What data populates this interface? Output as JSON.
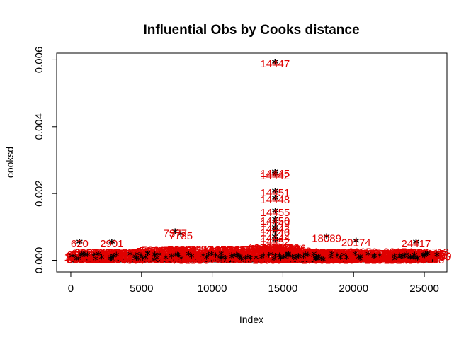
{
  "chart_data": {
    "type": "scatter",
    "title": "Influential Obs by Cooks distance",
    "xlabel": "Index",
    "ylabel": "cooksd",
    "xlim": [
      -1000,
      26600
    ],
    "ylim": [
      -0.00035,
      0.0062
    ],
    "x_ticks": [
      0,
      5000,
      10000,
      15000,
      20000,
      25000
    ],
    "x_tick_labels": [
      "0",
      "5000",
      "10000",
      "15000",
      "20000",
      "25000"
    ],
    "y_ticks": [
      0,
      0.002,
      0.004,
      0.006
    ],
    "y_tick_labels": [
      "0.000",
      "0.002",
      "0.004",
      "0.006"
    ],
    "point_marker": "*",
    "point_color": "#000000",
    "label_color": "#e00000",
    "labeled_points": [
      {
        "x": 14447,
        "y": 0.0059,
        "label": "14447"
      },
      {
        "x": 14445,
        "y": 0.00262,
        "label": "14445"
      },
      {
        "x": 14442,
        "y": 0.00255,
        "label": "14442"
      },
      {
        "x": 14451,
        "y": 0.00205,
        "label": "14451"
      },
      {
        "x": 14448,
        "y": 0.00183,
        "label": "14448"
      },
      {
        "x": 14455,
        "y": 0.00145,
        "label": "14455"
      },
      {
        "x": 14450,
        "y": 0.0012,
        "label": "14450"
      },
      {
        "x": 14449,
        "y": 0.00112,
        "label": "14449"
      },
      {
        "x": 14443,
        "y": 0.00095,
        "label": "14443"
      },
      {
        "x": 14446,
        "y": 0.00085,
        "label": "14446"
      },
      {
        "x": 14444,
        "y": 0.00068,
        "label": "14444"
      },
      {
        "x": 14452,
        "y": 0.00058,
        "label": "14452"
      },
      {
        "x": 7377,
        "y": 0.00083,
        "label": "7377"
      },
      {
        "x": 7785,
        "y": 0.00075,
        "label": "7785"
      },
      {
        "x": 18089,
        "y": 0.00068,
        "label": "18089"
      },
      {
        "x": 620,
        "y": 0.00052,
        "label": "620"
      },
      {
        "x": 2901,
        "y": 0.00052,
        "label": "2901"
      },
      {
        "x": 24417,
        "y": 0.00052,
        "label": "24417"
      },
      {
        "x": 20174,
        "y": 0.00055,
        "label": "20174"
      }
    ]
  }
}
